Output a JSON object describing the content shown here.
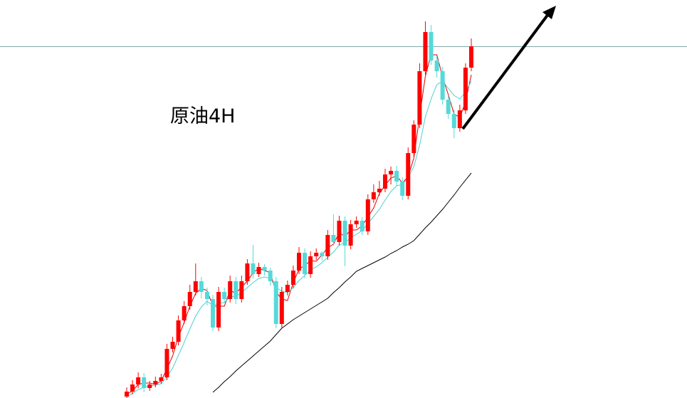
{
  "chart_data": {
    "type": "candlestick",
    "title": "原油4H",
    "ylim": [
      0,
      559
    ],
    "up_color": "#ff0000",
    "down_color": "#55d9d9",
    "values": [
      [
        2,
        15,
        0,
        9
      ],
      [
        9,
        25,
        5,
        19
      ],
      [
        19,
        36,
        14,
        29
      ],
      [
        29,
        35,
        8,
        14
      ],
      [
        14,
        24,
        10,
        19
      ],
      [
        19,
        30,
        15,
        24
      ],
      [
        24,
        34,
        20,
        29
      ],
      [
        29,
        76,
        25,
        69
      ],
      [
        69,
        86,
        64,
        79
      ],
      [
        79,
        116,
        74,
        109
      ],
      [
        109,
        136,
        104,
        129
      ],
      [
        129,
        159,
        124,
        149
      ],
      [
        149,
        189,
        144,
        164
      ],
      [
        164,
        170,
        140,
        149
      ],
      [
        149,
        155,
        130,
        139
      ],
      [
        139,
        145,
        94,
        99
      ],
      [
        99,
        156,
        94,
        149
      ],
      [
        149,
        155,
        134,
        139
      ],
      [
        139,
        172,
        134,
        164
      ],
      [
        164,
        170,
        132,
        139
      ],
      [
        139,
        172,
        134,
        164
      ],
      [
        164,
        195,
        159,
        189
      ],
      [
        189,
        215,
        168,
        174
      ],
      [
        174,
        190,
        170,
        184
      ],
      [
        184,
        188,
        172,
        179
      ],
      [
        179,
        183,
        158,
        164
      ],
      [
        164,
        170,
        98,
        104
      ],
      [
        104,
        156,
        99,
        149
      ],
      [
        149,
        165,
        144,
        159
      ],
      [
        159,
        186,
        154,
        179
      ],
      [
        179,
        212,
        174,
        204
      ],
      [
        204,
        210,
        168,
        174
      ],
      [
        174,
        206,
        169,
        199
      ],
      [
        199,
        210,
        194,
        204
      ],
      [
        204,
        206,
        193,
        199
      ],
      [
        199,
        236,
        194,
        229
      ],
      [
        229,
        258,
        214,
        219
      ],
      [
        219,
        256,
        214,
        249
      ],
      [
        249,
        255,
        185,
        214
      ],
      [
        214,
        250,
        209,
        244
      ],
      [
        244,
        255,
        239,
        249
      ],
      [
        249,
        254,
        229,
        234
      ],
      [
        234,
        286,
        229,
        279
      ],
      [
        279,
        300,
        274,
        289
      ],
      [
        289,
        305,
        284,
        294
      ],
      [
        294,
        322,
        289,
        314
      ],
      [
        314,
        325,
        300,
        319
      ],
      [
        319,
        326,
        298,
        304
      ],
      [
        304,
        310,
        278,
        284
      ],
      [
        284,
        352,
        279,
        344
      ],
      [
        344,
        390,
        339,
        384
      ],
      [
        384,
        470,
        379,
        459
      ],
      [
        459,
        529,
        454,
        514
      ],
      [
        514,
        524,
        468,
        474
      ],
      [
        474,
        480,
        450,
        459
      ],
      [
        459,
        465,
        412,
        419
      ],
      [
        419,
        425,
        392,
        399
      ],
      [
        399,
        405,
        365,
        379
      ],
      [
        379,
        412,
        374,
        404
      ],
      [
        404,
        470,
        399,
        464
      ],
      [
        464,
        505,
        459,
        494
      ]
    ],
    "lines": [
      {
        "color": "#e00000",
        "values": [
          5,
          10,
          19,
          21,
          21,
          19,
          24,
          41,
          59,
          86,
          106,
          129,
          147,
          154,
          151,
          129,
          129,
          129,
          151,
          147,
          156,
          164,
          176,
          182,
          179,
          176,
          149,
          139,
          137,
          162,
          181,
          186,
          193,
          192,
          201,
          211,
          216,
          232,
          227,
          236,
          236,
          242,
          254,
          267,
          287,
          299,
          309,
          312,
          302,
          311,
          337,
          396,
          452,
          482,
          482,
          451,
          426,
          399,
          394,
          416,
          454
        ]
      },
      {
        "color": "#4fd0d0",
        "values": [
          2,
          6,
          12,
          15,
          17,
          18,
          20,
          30,
          42,
          60,
          78,
          97,
          115,
          128,
          136,
          130,
          133,
          134,
          142,
          143,
          148,
          155,
          162,
          168,
          170,
          168,
          155,
          150,
          148,
          155,
          165,
          172,
          180,
          184,
          190,
          198,
          205,
          215,
          218,
          225,
          230,
          235,
          245,
          255,
          265,
          278,
          290,
          298,
          300,
          310,
          325,
          355,
          395,
          420,
          440,
          445,
          435,
          425,
          420,
          430,
          445
        ]
      },
      {
        "color": "#000000",
        "values": [
          null,
          null,
          null,
          null,
          null,
          null,
          null,
          null,
          null,
          null,
          null,
          null,
          null,
          null,
          null,
          8,
          15,
          23,
          30,
          38,
          45,
          52,
          59,
          66,
          73,
          80,
          89,
          98,
          104,
          110,
          115,
          120,
          125,
          130,
          135,
          140,
          148,
          155,
          163,
          170,
          178,
          182,
          186,
          190,
          194,
          198,
          203,
          207,
          212,
          216,
          221,
          230,
          239,
          247,
          256,
          265,
          275,
          285,
          296,
          306,
          316
        ]
      }
    ]
  }
}
